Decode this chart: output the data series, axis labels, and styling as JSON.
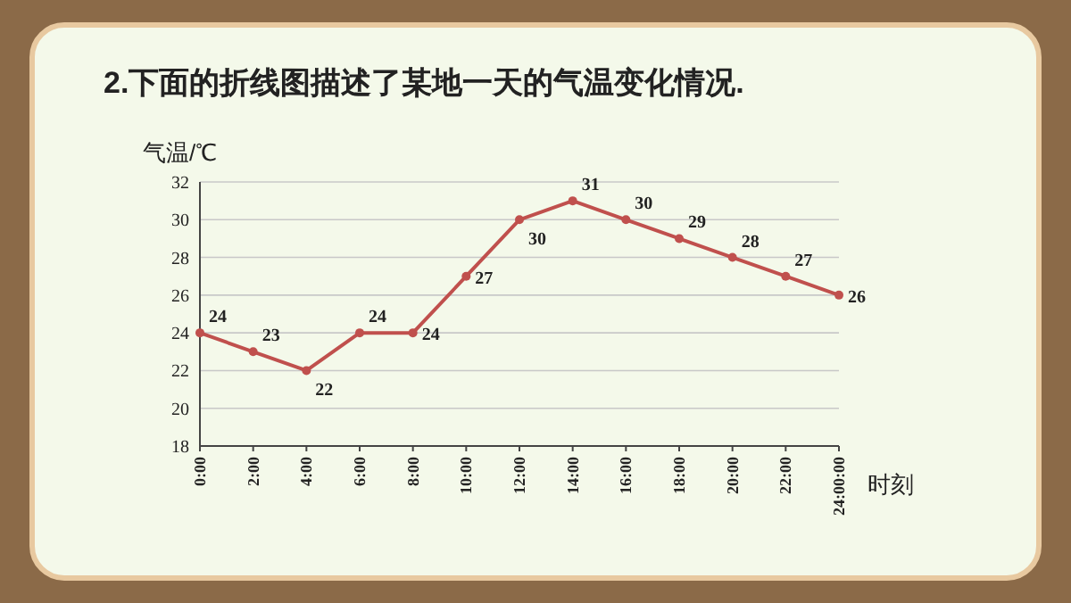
{
  "chart_data": {
    "type": "line",
    "title": "2.下面的折线图描述了某地一天的气温变化情况.",
    "xlabel": "时刻",
    "ylabel": "气温/℃",
    "x": [
      0,
      2,
      4,
      6,
      8,
      10,
      12,
      14,
      16,
      18,
      20,
      22,
      24
    ],
    "xlim": [
      0,
      24
    ],
    "xticks": [
      {
        "value": 0,
        "label": "0:00"
      },
      {
        "value": 2,
        "label": "2:00"
      },
      {
        "value": 4,
        "label": "4:00"
      },
      {
        "value": 6,
        "label": "6:00"
      },
      {
        "value": 8,
        "label": "8:00"
      },
      {
        "value": 10,
        "label": "10:00"
      },
      {
        "value": 12,
        "label": "12:00"
      },
      {
        "value": 14,
        "label": "14:00"
      },
      {
        "value": 16,
        "label": "16:00"
      },
      {
        "value": 18,
        "label": "18:00"
      },
      {
        "value": 20,
        "label": "20:00"
      },
      {
        "value": 22,
        "label": "22:00"
      },
      {
        "value": 24,
        "label": "24:00:00"
      }
    ],
    "ylim": [
      18,
      32
    ],
    "yticks": [
      18,
      20,
      22,
      24,
      26,
      28,
      30,
      32
    ],
    "series": [
      {
        "color": "#c0504d",
        "values": [
          24,
          23,
          22,
          24,
          24,
          27,
          30,
          31,
          30,
          29,
          28,
          27,
          26
        ]
      }
    ],
    "data_labels": true,
    "grid": "y",
    "marker": "circle",
    "line_style": "solid"
  }
}
